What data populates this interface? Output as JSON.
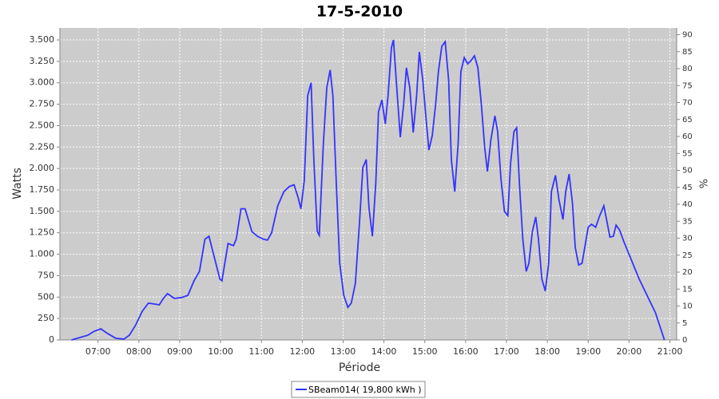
{
  "chart_data": {
    "type": "line",
    "title": "17-5-2010",
    "x_label": "Période",
    "y_label": "Watts",
    "y2_label": "%",
    "x": [
      "06:21",
      "06:45",
      "06:54",
      "07:04",
      "07:14",
      "07:26",
      "07:38",
      "07:46",
      "07:55",
      "08:05",
      "08:14",
      "08:22",
      "08:30",
      "08:36",
      "08:42",
      "08:52",
      "09:03",
      "09:12",
      "09:21",
      "09:29",
      "09:37",
      "09:43",
      "09:50",
      "09:59",
      "10:02",
      "10:11",
      "10:19",
      "10:23",
      "10:30",
      "10:36",
      "10:46",
      "10:54",
      "11:03",
      "11:09",
      "11:15",
      "11:24",
      "11:33",
      "11:41",
      "11:48",
      "11:54",
      "11:58",
      "12:03",
      "12:08",
      "12:13",
      "12:17",
      "12:22",
      "12:25",
      "12:31",
      "12:36",
      "12:41",
      "12:45",
      "12:50",
      "12:55",
      "13:01",
      "13:07",
      "13:12",
      "13:18",
      "13:24",
      "13:29",
      "13:34",
      "13:38",
      "13:43",
      "13:48",
      "13:52",
      "13:57",
      "14:02",
      "14:06",
      "14:11",
      "14:14",
      "14:18",
      "14:24",
      "14:29",
      "14:33",
      "14:38",
      "14:43",
      "14:48",
      "14:52",
      "14:57",
      "15:02",
      "15:06",
      "15:11",
      "15:16",
      "15:20",
      "15:25",
      "15:30",
      "15:35",
      "15:39",
      "15:44",
      "15:49",
      "15:53",
      "15:58",
      "16:03",
      "16:08",
      "16:13",
      "16:18",
      "16:23",
      "16:28",
      "16:32",
      "16:37",
      "16:43",
      "16:47",
      "16:52",
      "16:57",
      "17:02",
      "17:06",
      "17:11",
      "17:15",
      "17:19",
      "17:24",
      "17:29",
      "17:33",
      "17:38",
      "17:43",
      "17:47",
      "17:52",
      "17:57",
      "18:02",
      "18:06",
      "18:12",
      "18:17",
      "18:23",
      "18:27",
      "18:32",
      "18:37",
      "18:41",
      "18:46",
      "18:51",
      "18:56",
      "19:00",
      "19:05",
      "19:11",
      "19:17",
      "19:23",
      "19:27",
      "19:32",
      "19:37",
      "19:41",
      "19:46",
      "19:52",
      "20:15",
      "20:39",
      "20:52"
    ],
    "series": [
      {
        "name": "SBeam014( 19,800 kWh )",
        "color": "#3333ff",
        "values": [
          0,
          55,
          100,
          130,
          75,
          20,
          10,
          55,
          170,
          335,
          430,
          420,
          410,
          485,
          540,
          485,
          495,
          520,
          690,
          800,
          1175,
          1210,
          990,
          710,
          690,
          1125,
          1100,
          1175,
          1530,
          1530,
          1265,
          1210,
          1175,
          1165,
          1250,
          1565,
          1730,
          1790,
          1810,
          1660,
          1530,
          1860,
          2850,
          3000,
          2105,
          1265,
          1220,
          2290,
          2940,
          3150,
          2850,
          1825,
          895,
          520,
          380,
          430,
          660,
          1360,
          2010,
          2105,
          1545,
          1210,
          1825,
          2660,
          2800,
          2520,
          2850,
          3410,
          3500,
          3035,
          2365,
          2755,
          3175,
          2940,
          2420,
          2850,
          3360,
          3035,
          2570,
          2215,
          2385,
          2755,
          3130,
          3425,
          3480,
          3035,
          2105,
          1730,
          2290,
          3130,
          3295,
          3220,
          3260,
          3315,
          3175,
          2755,
          2245,
          1965,
          2330,
          2615,
          2430,
          1870,
          1500,
          1450,
          2060,
          2430,
          2475,
          1825,
          1175,
          800,
          895,
          1265,
          1435,
          1175,
          710,
          570,
          895,
          1730,
          1920,
          1640,
          1405,
          1730,
          1935,
          1590,
          1080,
          875,
          895,
          1125,
          1315,
          1350,
          1315,
          1450,
          1565,
          1405,
          1200,
          1210,
          1340,
          1285,
          1155,
          710,
          315,
          0
        ]
      }
    ],
    "xlim": [
      "06:04",
      "21:10"
    ],
    "xticks": [
      "07:00",
      "08:00",
      "09:00",
      "10:00",
      "11:00",
      "12:00",
      "13:00",
      "14:00",
      "15:00",
      "16:00",
      "17:00",
      "18:00",
      "19:00",
      "20:00",
      "21:00"
    ],
    "ylim": [
      0,
      3640
    ],
    "yticks": [
      0,
      250,
      500,
      750,
      {
        "value": 1000,
        "label": "1.000"
      },
      {
        "value": 1250,
        "label": "1.250"
      },
      {
        "value": 1500,
        "label": "1.500"
      },
      {
        "value": 1750,
        "label": "1.750"
      },
      {
        "value": 2000,
        "label": "2.000"
      },
      {
        "value": 2250,
        "label": "2.250"
      },
      {
        "value": 2500,
        "label": "2.500"
      },
      {
        "value": 2750,
        "label": "2.750"
      },
      {
        "value": 3000,
        "label": "3.000"
      },
      {
        "value": 3250,
        "label": "3.250"
      },
      {
        "value": 3500,
        "label": "3.500"
      }
    ],
    "y2lim": [
      0,
      92
    ],
    "y2ticks": [
      0,
      5,
      10,
      15,
      20,
      25,
      30,
      35,
      40,
      45,
      50,
      55,
      60,
      65,
      70,
      75,
      80,
      85,
      90
    ],
    "grid": true
  }
}
